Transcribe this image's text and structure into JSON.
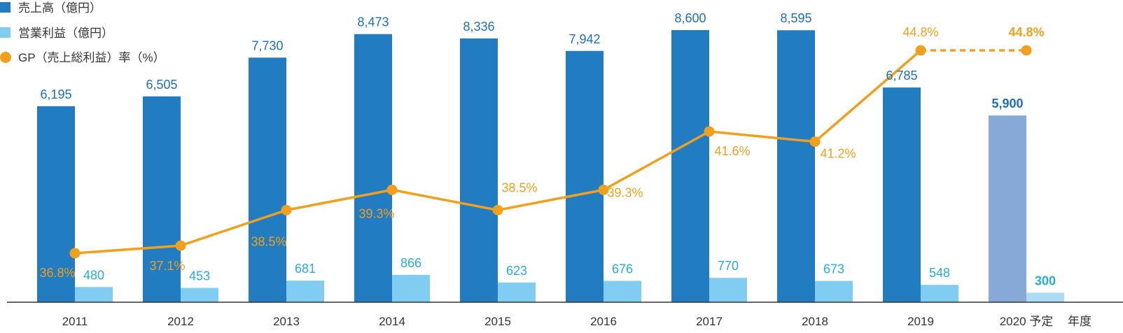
{
  "colors": {
    "sales": "#217cc1",
    "sales_forecast": "#86a9d8",
    "operating_profit": "#81cdf2",
    "operating_profit_forecast": "#abdcf5",
    "gp": "#f0a01c",
    "sales_label": "#1e6fb5",
    "op_label": "#27a9e1",
    "axis": "#333333"
  },
  "legend": {
    "sales": "売上高（億円）",
    "operating_profit": "営業利益（億円）",
    "gp": "GP（売上総利益）率（%）"
  },
  "chart_data": {
    "type": "bar",
    "categories": [
      "2011",
      "2012",
      "2013",
      "2014",
      "2015",
      "2016",
      "2017",
      "2018",
      "2019",
      "2020 予定"
    ],
    "x_unit_label": "年度",
    "series": [
      {
        "name": "売上高（億円）",
        "type": "bar",
        "values": [
          6195,
          6505,
          7730,
          8473,
          8336,
          7942,
          8600,
          8595,
          6785,
          5900
        ],
        "labels": [
          "6,195",
          "6,505",
          "7,730",
          "8,473",
          "8,336",
          "7,942",
          "8,600",
          "8,595",
          "6,785",
          "5,900"
        ]
      },
      {
        "name": "営業利益（億円）",
        "type": "bar",
        "values": [
          480,
          453,
          681,
          866,
          623,
          676,
          770,
          673,
          548,
          300
        ],
        "labels": [
          "480",
          "453",
          "681",
          "866",
          "623",
          "676",
          "770",
          "673",
          "548",
          "300"
        ]
      },
      {
        "name": "GP（売上総利益）率（%）",
        "type": "line",
        "values": [
          36.8,
          37.1,
          38.5,
          39.3,
          38.5,
          39.3,
          41.6,
          41.2,
          44.8,
          44.8
        ],
        "labels": [
          "36.8%",
          "37.1%",
          "38.5%",
          "39.3%",
          "38.5%",
          "39.3%",
          "41.6%",
          "41.2%",
          "44.8%",
          "44.8%"
        ]
      }
    ],
    "forecast_index": 9,
    "bar_ylim": [
      0,
      9000
    ],
    "gp_ylim": [
      34.0,
      46.0
    ],
    "grid": false,
    "legend_position": "top-left"
  }
}
